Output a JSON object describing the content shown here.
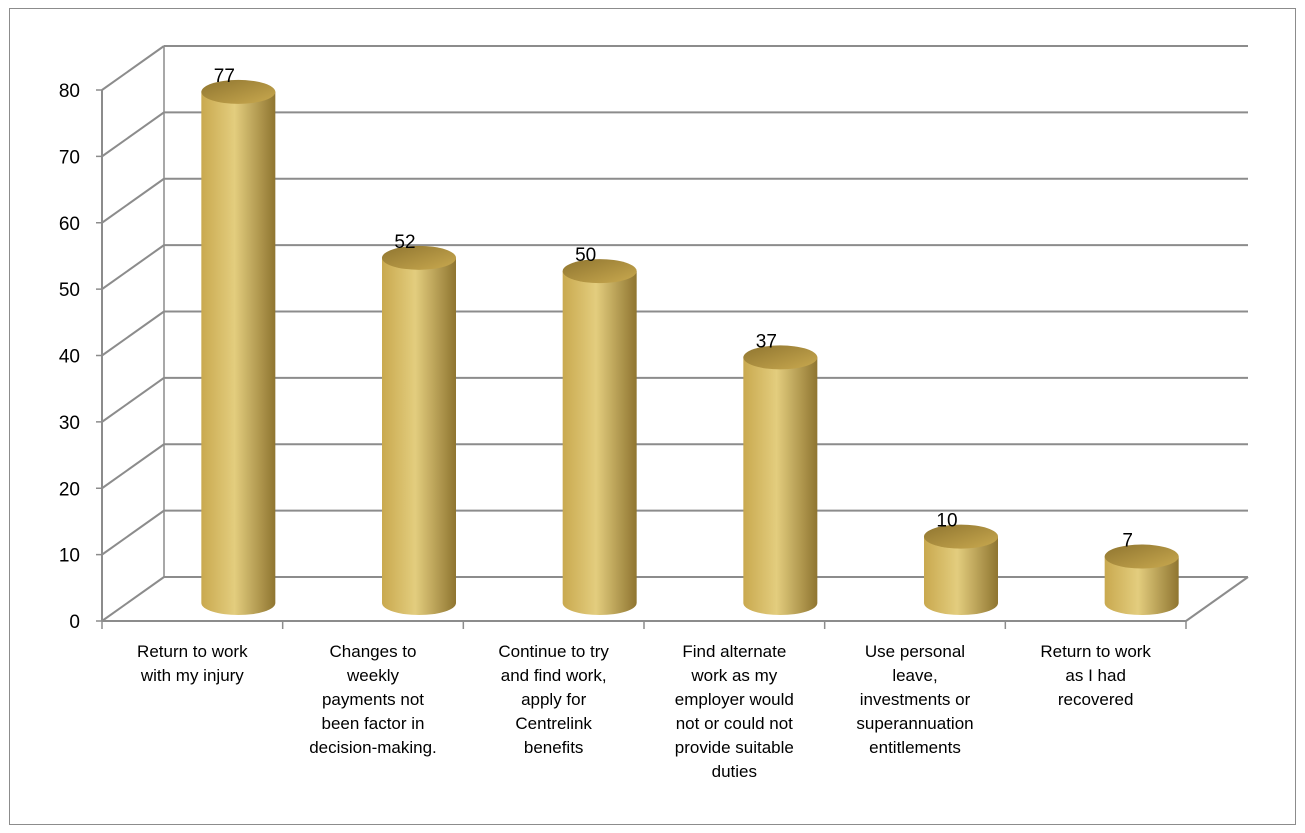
{
  "chart_data": {
    "type": "bar",
    "style": "3d-cylinder",
    "categories": [
      [
        "Return to work",
        "with my injury"
      ],
      [
        "Changes to",
        "weekly",
        "payments not",
        "been factor in",
        "decision-making."
      ],
      [
        "Continue to try",
        "and find work,",
        "apply for",
        "Centrelink",
        "benefits"
      ],
      [
        "Find alternate",
        "work as my",
        "employer would",
        "not or could not",
        "provide suitable",
        "duties"
      ],
      [
        "Use personal",
        "leave,",
        "investments or",
        "superannuation",
        "entitlements"
      ],
      [
        "Return to work",
        "as I had",
        "recovered"
      ]
    ],
    "values": [
      77,
      52,
      50,
      37,
      10,
      7
    ],
    "data_labels": [
      "77",
      "52",
      "50",
      "37",
      "10",
      "7"
    ],
    "ylim": [
      0,
      80
    ],
    "yticks": [
      0,
      10,
      20,
      30,
      40,
      50,
      60,
      70,
      80
    ],
    "grid": true,
    "legend": "none",
    "title": "",
    "xlabel": "",
    "ylabel": "",
    "colors": {
      "bar_light": "#e3cd7e",
      "bar_mid": "#c9a94f",
      "bar_dark": "#8f7530",
      "gridline": "#8c8c8c",
      "frame": "#8c8c8c"
    }
  }
}
